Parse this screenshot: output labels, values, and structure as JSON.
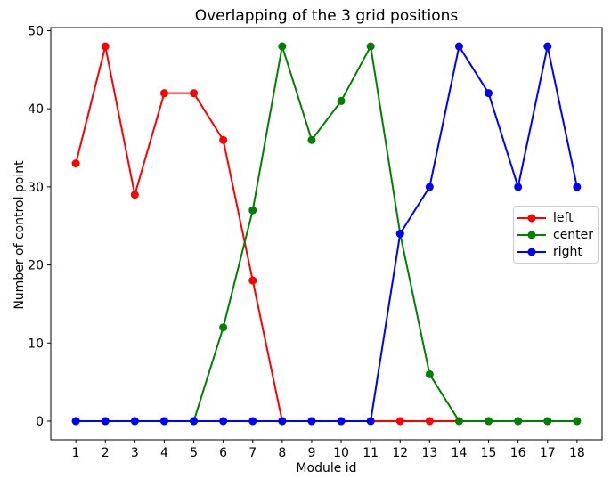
{
  "window": {
    "background": "#ffffff"
  },
  "chart_data": {
    "type": "line",
    "title": "Overlapping of the 3 grid positions",
    "xlabel": "Module id",
    "ylabel": "Number of control point",
    "x": [
      1,
      2,
      3,
      4,
      5,
      6,
      7,
      8,
      9,
      10,
      11,
      12,
      13,
      14,
      15,
      16,
      17,
      18
    ],
    "series": [
      {
        "name": "left",
        "color": "#ff0000",
        "values": [
          33,
          48,
          29,
          42,
          42,
          36,
          18,
          0,
          0,
          0,
          0,
          0,
          0,
          0,
          0,
          0,
          0,
          0
        ]
      },
      {
        "name": "center",
        "color": "#008000",
        "values": [
          0,
          0,
          0,
          0,
          0,
          12,
          27,
          48,
          36,
          41,
          48,
          24,
          6,
          0,
          0,
          0,
          0,
          0
        ]
      },
      {
        "name": "right",
        "color": "#0000ff",
        "values": [
          0,
          0,
          0,
          0,
          0,
          0,
          0,
          0,
          0,
          0,
          0,
          24,
          30,
          48,
          42,
          30,
          48,
          30
        ]
      }
    ],
    "xticks": [
      1,
      2,
      3,
      4,
      5,
      6,
      7,
      8,
      9,
      10,
      11,
      12,
      13,
      14,
      15,
      16,
      17,
      18
    ],
    "yticks": [
      0,
      10,
      20,
      30,
      40,
      50
    ],
    "xlim": [
      0.15,
      18.85
    ],
    "ylim": [
      -2.4,
      50.4
    ],
    "grid": false,
    "legend": {
      "position": "center-right",
      "entries": [
        "left",
        "center",
        "right"
      ]
    },
    "marker": "circle",
    "marker_size": 9,
    "line_width": 2,
    "axis_color": "#000000"
  }
}
